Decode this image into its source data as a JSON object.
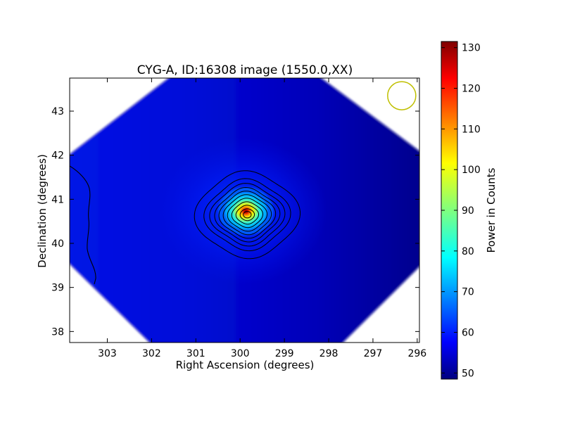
{
  "chart_data": {
    "type": "heatmap",
    "title": "CYG-A, ID:16308 image (1550.0,XX)",
    "xlabel": "Right Ascension (degrees)",
    "ylabel": "Declination (degrees)",
    "x_reversed": true,
    "xlim": [
      303.85,
      295.95
    ],
    "ylim": [
      37.75,
      43.75
    ],
    "xticks": [
      303,
      302,
      301,
      300,
      299,
      298,
      297,
      296
    ],
    "yticks": [
      38,
      39,
      40,
      41,
      42,
      43
    ],
    "grid": false,
    "colormap": "jet",
    "colorbar": {
      "label": "Power in Counts",
      "range": [
        48.5,
        131.5
      ],
      "ticks": [
        50,
        60,
        70,
        80,
        90,
        100,
        110,
        120,
        130
      ]
    },
    "source": {
      "ra": 299.87,
      "dec": 40.73,
      "peak_counts": 131
    },
    "background_counts": {
      "east_edge": 57,
      "center": 55,
      "west_edge": 49
    },
    "contour_color": "#000000",
    "beam_marker": {
      "ra": 296.35,
      "dec": 43.35,
      "color": "#bfbf00"
    }
  }
}
